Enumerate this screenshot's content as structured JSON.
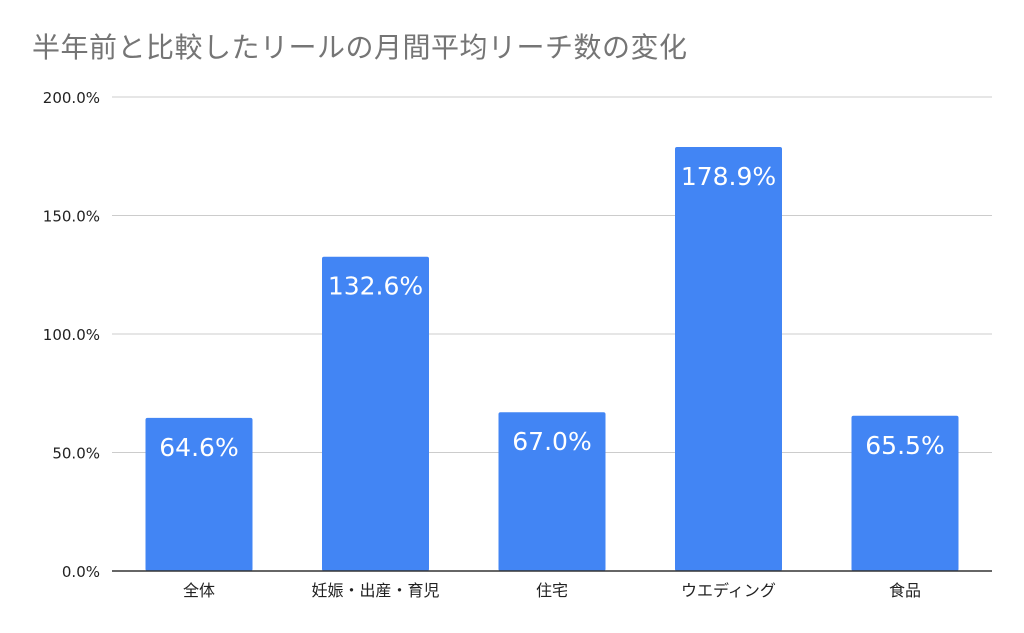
{
  "chart_data": {
    "type": "bar",
    "title": "半年前と比較したリールの月間平均リーチ数の変化",
    "categories": [
      "全体",
      "妊娠・出産・育児",
      "住宅",
      "ウエディング",
      "食品"
    ],
    "values": [
      64.6,
      132.6,
      67.0,
      178.9,
      65.5
    ],
    "data_labels": [
      "64.6%",
      "132.6%",
      "67.0%",
      "178.9%",
      "65.5%"
    ],
    "ylim": [
      0,
      200
    ],
    "yticks": [
      0,
      50,
      100,
      150,
      200
    ],
    "ytick_labels": [
      "0.0%",
      "50.0%",
      "100.0%",
      "150.0%",
      "200.0%"
    ],
    "xlabel": "",
    "ylabel": "",
    "grid": true,
    "legend": "none",
    "bar_color": "#4285f4"
  }
}
